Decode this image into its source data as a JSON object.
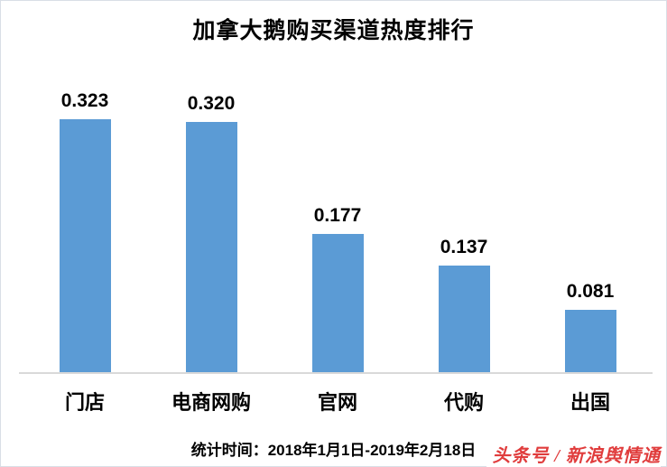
{
  "page": {
    "title": "加拿大鹅购买渠道热度排行",
    "footer": "统计时间：2018年1月1日-2019年2月18日",
    "watermark": "头条号 / 新浪舆情通"
  },
  "colors": {
    "bar": "#5B9BD5",
    "axis": "#D9D9D9",
    "text": "#000000",
    "watermark": "#E03C3C"
  },
  "chart_data": {
    "type": "bar",
    "title": "加拿大鹅购买渠道热度排行",
    "categories": [
      "门店",
      "电商网购",
      "官网",
      "代购",
      "出国"
    ],
    "values": [
      0.323,
      0.32,
      0.177,
      0.137,
      0.081
    ],
    "value_labels": [
      "0.323",
      "0.320",
      "0.177",
      "0.137",
      "0.081"
    ],
    "xlabel": "",
    "ylabel": "",
    "ylim": [
      0,
      0.36
    ],
    "grid": false,
    "legend": false,
    "bar_color": "#5B9BD5",
    "axis_color": "#D9D9D9",
    "footer": "统计时间：2018年1月1日-2019年2月18日",
    "watermark": "头条号 / 新浪舆情通"
  }
}
